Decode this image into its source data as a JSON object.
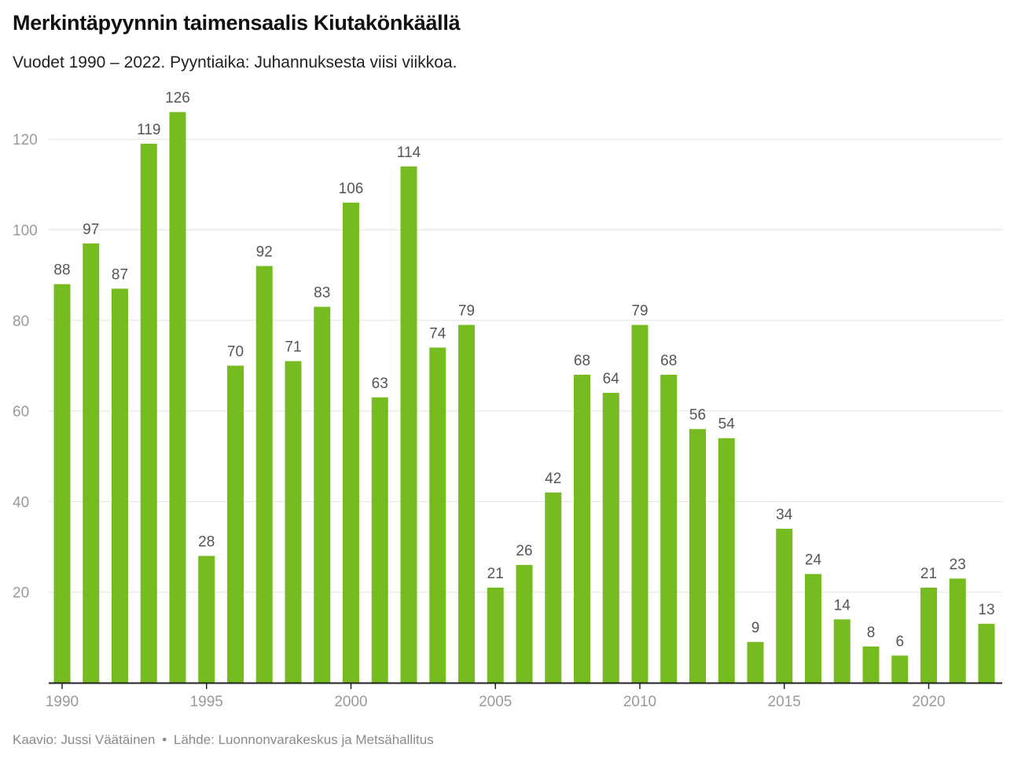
{
  "header": {
    "title": "Merkintäpyynnin taimensaalis Kiutakönkäällä",
    "subtitle": "Vuodet 1990 – 2022. Pyyntiaika: Juhannuksesta viisi viikkoa."
  },
  "footer": {
    "author": "Kaavio: Jussi Väätäinen",
    "separator": "•",
    "source": "Lähde: Luonnonvarakeskus ja Metsähallitus"
  },
  "colors": {
    "bar": "#76bc21",
    "grid": "#e3e3e3",
    "baseline": "#222222"
  },
  "chart_data": {
    "type": "bar",
    "title": "Merkintäpyynnin taimensaalis Kiutakönkäällä",
    "subtitle": "Vuodet 1990 – 2022. Pyyntiaika: Juhannuksesta viisi viikkoa.",
    "xlabel": "",
    "ylabel": "",
    "categories": [
      1990,
      1991,
      1992,
      1993,
      1994,
      1995,
      1996,
      1997,
      1998,
      1999,
      2000,
      2001,
      2002,
      2003,
      2004,
      2005,
      2006,
      2007,
      2008,
      2009,
      2010,
      2011,
      2012,
      2013,
      2014,
      2015,
      2016,
      2017,
      2018,
      2019,
      2020,
      2021,
      2022
    ],
    "values": [
      88,
      97,
      87,
      119,
      126,
      28,
      70,
      92,
      71,
      83,
      106,
      63,
      114,
      74,
      79,
      21,
      26,
      42,
      68,
      64,
      79,
      68,
      56,
      54,
      9,
      34,
      24,
      14,
      8,
      6,
      21,
      23,
      13
    ],
    "ylim": [
      0,
      130
    ],
    "yticks": [
      20,
      40,
      60,
      80,
      100,
      120
    ],
    "xticks": [
      1990,
      1995,
      2000,
      2005,
      2010,
      2015,
      2020
    ],
    "grid": true,
    "legend": "none",
    "data_labels": true
  }
}
